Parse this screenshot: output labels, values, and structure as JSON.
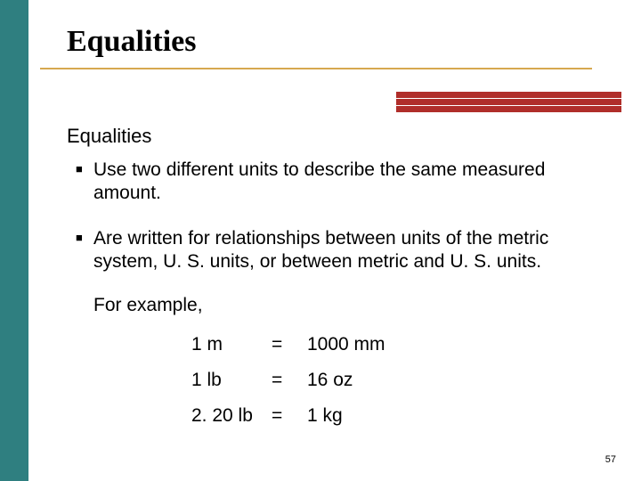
{
  "colors": {
    "left_bar": "#2f7f80",
    "title_text": "#1a1a1a",
    "underline": "#d6a84f",
    "accent_bar": "#b02e2a",
    "body_text": "#000000",
    "bullet_marker": "#000000"
  },
  "title": "Equalities",
  "subtitle": "Equalities",
  "bullets": [
    "Use two different units to describe the same measured amount.",
    "Are written for relationships between units of the metric system, U. S. units, or between metric and U. S. units."
  ],
  "for_example": "For example,",
  "equalities_table": {
    "rows": [
      {
        "left": "1 m",
        "mid": "=",
        "right": "1000 mm"
      },
      {
        "left": "1 lb",
        "mid": "=",
        "right": "16 oz"
      },
      {
        "left": "2. 20 lb",
        "mid": "=",
        "right": "1 kg"
      }
    ]
  },
  "page_number": "57",
  "bullet_glyph": "■"
}
